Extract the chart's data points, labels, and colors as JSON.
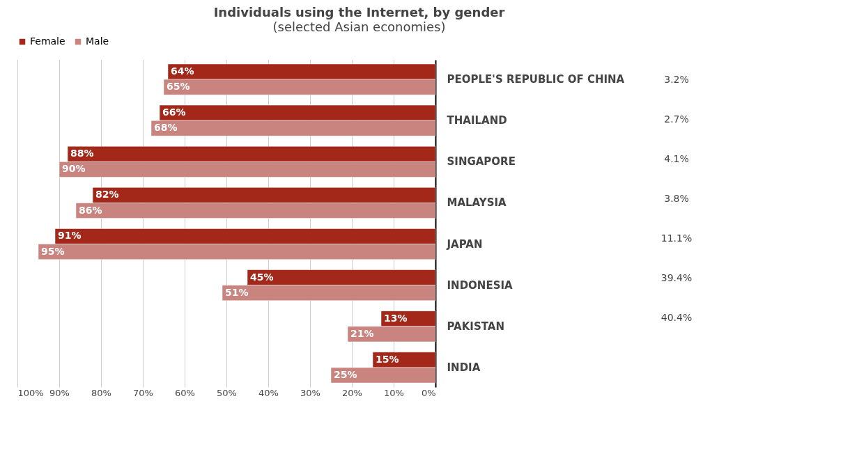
{
  "chart_data": {
    "type": "bar",
    "orientation": "horizontal",
    "title": "Individuals using the Internet, by gender",
    "subtitle": "(selected Asian economies)",
    "categories": [
      "PEOPLE'S REPUBLIC OF CHINA",
      "THAILAND",
      "SINGAPORE",
      "MALAYSIA",
      "JAPAN",
      "INDONESIA",
      "PAKISTAN",
      "INDIA"
    ],
    "series": [
      {
        "name": "Female",
        "color": "#a3281a",
        "values": [
          64,
          66,
          88,
          82,
          91,
          45,
          13,
          15
        ],
        "value_labels": [
          "64%",
          "66%",
          "88%",
          "82%",
          "91%",
          "45%",
          "13%",
          "15%"
        ]
      },
      {
        "name": "Male",
        "color": "#c98480",
        "values": [
          65,
          68,
          90,
          86,
          95,
          51,
          21,
          25
        ],
        "value_labels": [
          "65%",
          "68%",
          "90%",
          "86%",
          "95%",
          "51%",
          "21%",
          "25%"
        ]
      }
    ],
    "xlim": [
      100,
      0
    ],
    "xticks": [
      {
        "value": 100,
        "label": "100%"
      },
      {
        "value": 90,
        "label": "90%"
      },
      {
        "value": 80,
        "label": "80%"
      },
      {
        "value": 70,
        "label": "70%"
      },
      {
        "value": 60,
        "label": "60%"
      },
      {
        "value": 50,
        "label": "50%"
      },
      {
        "value": 40,
        "label": "40%"
      },
      {
        "value": 30,
        "label": "30%"
      },
      {
        "value": 20,
        "label": "20%"
      },
      {
        "value": 10,
        "label": "10%"
      },
      {
        "value": 0,
        "label": "0%"
      }
    ],
    "grid": "x",
    "legend": "top",
    "annotations": [
      "3.2%",
      "2.7%",
      "4.1%",
      "3.8%",
      "11.1%",
      "39.4%",
      "40.4%"
    ]
  }
}
